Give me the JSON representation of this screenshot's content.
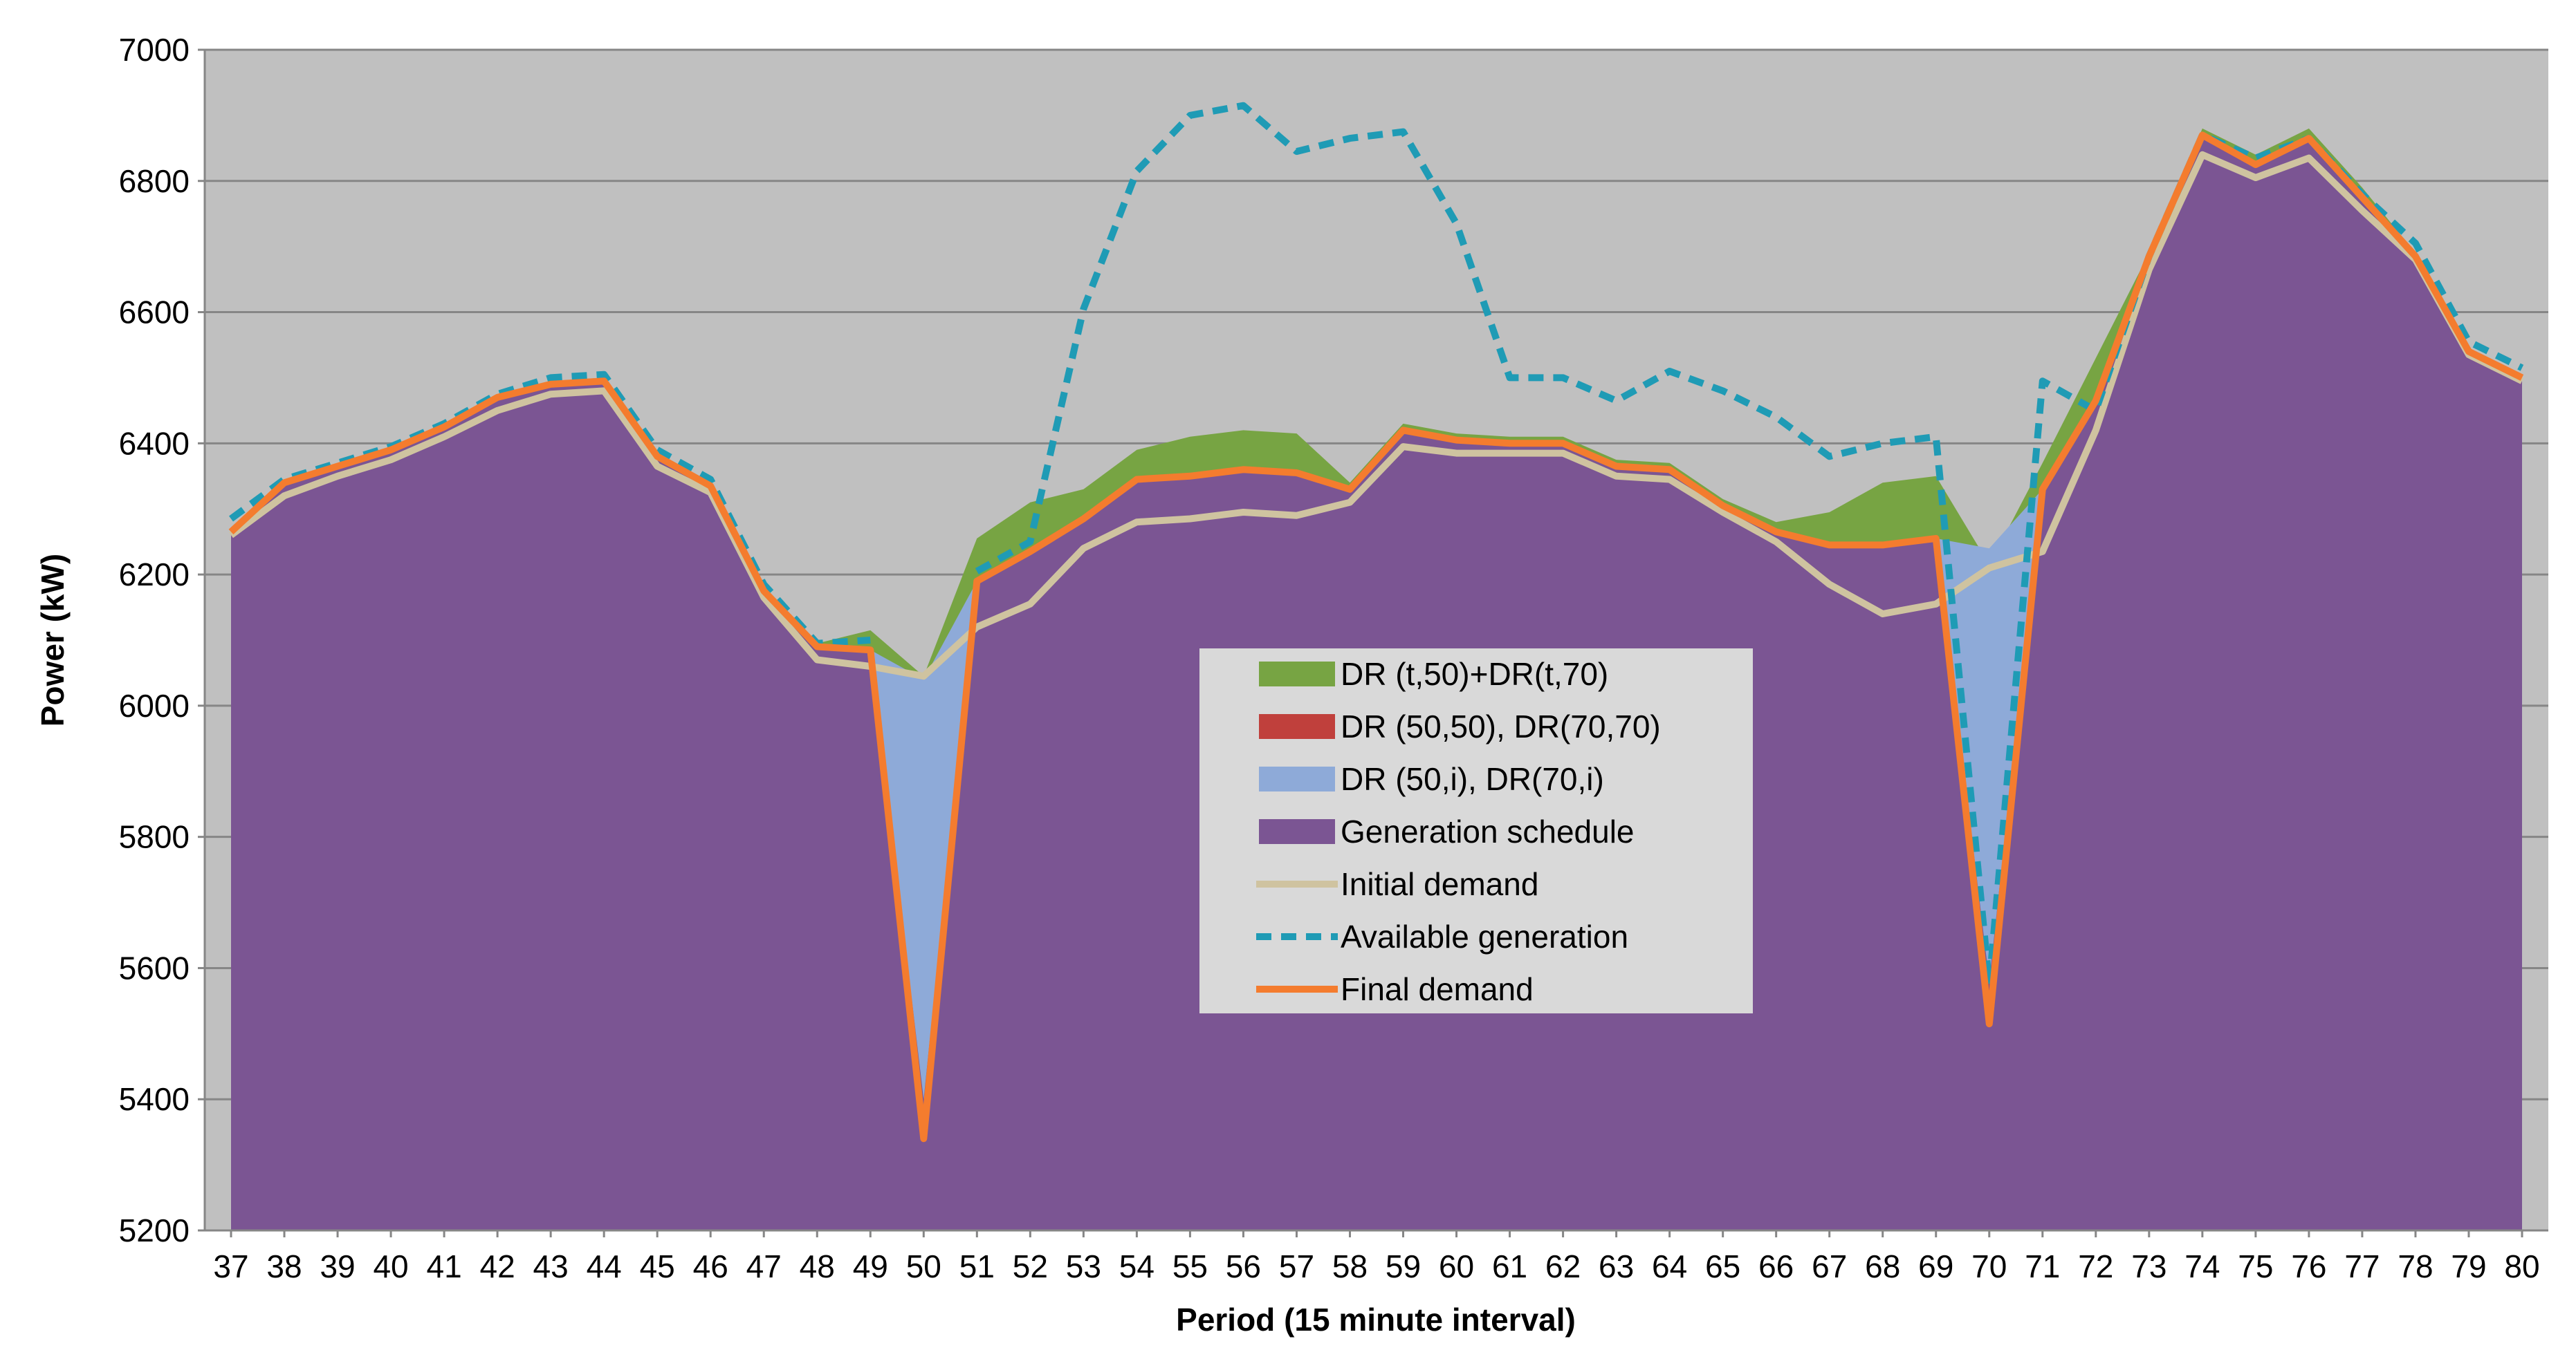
{
  "chart_data": {
    "type": "area",
    "title": "",
    "xlabel": "Period (15 minute interval)",
    "ylabel": "Power (kW)",
    "ylim": [
      5200,
      7000
    ],
    "yticks": [
      5200,
      5400,
      5600,
      5800,
      6000,
      6200,
      6400,
      6600,
      6800,
      7000
    ],
    "grid": true,
    "legend_position": "center",
    "categories": [
      "37",
      "38",
      "39",
      "40",
      "41",
      "42",
      "43",
      "44",
      "45",
      "46",
      "47",
      "48",
      "49",
      "50",
      "51",
      "52",
      "53",
      "54",
      "55",
      "56",
      "57",
      "58",
      "59",
      "60",
      "61",
      "62",
      "63",
      "64",
      "65",
      "66",
      "67",
      "68",
      "69",
      "70",
      "71",
      "72",
      "73",
      "74",
      "75",
      "76",
      "77",
      "78",
      "79",
      "80"
    ],
    "series": [
      {
        "name": "DR (t,50)+DR(t,70)",
        "kind": "area",
        "color": "#77a443",
        "values": [
          6265,
          6340,
          6365,
          6390,
          6425,
          6470,
          6495,
          6500,
          6385,
          6340,
          6175,
          6095,
          6115,
          6045,
          6255,
          6310,
          6330,
          6390,
          6410,
          6420,
          6415,
          6340,
          6430,
          6415,
          6410,
          6410,
          6375,
          6370,
          6315,
          6280,
          6295,
          6340,
          6350,
          6215,
          6370,
          6530,
          6690,
          6880,
          6840,
          6880,
          6790,
          6690,
          6545,
          6505
        ]
      },
      {
        "name": "DR (50,50), DR(70,70)",
        "kind": "area",
        "color": "#c0403c",
        "values": [
          6265,
          6340,
          6365,
          6390,
          6425,
          6470,
          6490,
          6495,
          6380,
          6335,
          6175,
          6090,
          6085,
          5955,
          6190,
          6235,
          6285,
          6345,
          6350,
          6360,
          6355,
          6330,
          6420,
          6405,
          6400,
          6400,
          6365,
          6360,
          6305,
          6265,
          6245,
          6245,
          6255,
          6165,
          6330,
          6465,
          6685,
          6870,
          6825,
          6865,
          6775,
          6685,
          6540,
          6500
        ]
      },
      {
        "name": "DR (50,i), DR(70,i)",
        "kind": "area",
        "color": "#8eaad8",
        "values": [
          6265,
          6340,
          6365,
          6390,
          6425,
          6470,
          6490,
          6495,
          6380,
          6335,
          6175,
          6090,
          6085,
          6040,
          6190,
          6235,
          6285,
          6345,
          6350,
          6360,
          6355,
          6330,
          6420,
          6405,
          6400,
          6400,
          6365,
          6360,
          6305,
          6265,
          6245,
          6245,
          6255,
          6240,
          6330,
          6465,
          6685,
          6870,
          6825,
          6865,
          6775,
          6685,
          6540,
          6500
        ]
      },
      {
        "name": "Generation schedule",
        "kind": "area",
        "color": "#7b5593",
        "values": [
          6265,
          6340,
          6365,
          6390,
          6425,
          6470,
          6490,
          6495,
          6380,
          6335,
          6175,
          6090,
          6085,
          5400,
          6190,
          6235,
          6285,
          6345,
          6350,
          6360,
          6355,
          6330,
          6420,
          6405,
          6400,
          6400,
          6365,
          6360,
          6305,
          6265,
          6245,
          6245,
          6255,
          5580,
          6330,
          6465,
          6685,
          6870,
          6825,
          6865,
          6775,
          6685,
          6540,
          6500
        ]
      },
      {
        "name": "Initial demand",
        "kind": "line",
        "color": "#cfc3a0",
        "dash": "",
        "values": [
          6260,
          6320,
          6350,
          6375,
          6410,
          6450,
          6475,
          6480,
          6365,
          6325,
          6165,
          6070,
          6060,
          6045,
          6120,
          6155,
          6240,
          6280,
          6285,
          6295,
          6290,
          6310,
          6395,
          6385,
          6385,
          6385,
          6350,
          6345,
          6295,
          6250,
          6185,
          6140,
          6155,
          6210,
          6235,
          6420,
          6665,
          6840,
          6805,
          6835,
          6755,
          6680,
          6535,
          6495
        ]
      },
      {
        "name": "Available generation",
        "kind": "line",
        "color": "#1f9bb5",
        "dash": "22,14",
        "values": [
          6285,
          6345,
          6370,
          6395,
          6430,
          6475,
          6500,
          6505,
          6390,
          6345,
          6185,
          6095,
          6100,
          null,
          6205,
          6250,
          6605,
          6815,
          6900,
          6915,
          6845,
          6865,
          6875,
          6735,
          6500,
          6500,
          6465,
          6510,
          6480,
          6440,
          6380,
          6400,
          6410,
          5575,
          6495,
          6450,
          6685,
          6870,
          6835,
          6865,
          6780,
          6705,
          6555,
          6515
        ]
      },
      {
        "name": "Final demand",
        "kind": "line",
        "color": "#f47c2e",
        "dash": "",
        "values": [
          6265,
          6340,
          6365,
          6390,
          6425,
          6470,
          6490,
          6495,
          6380,
          6335,
          6175,
          6090,
          6085,
          5340,
          6190,
          6235,
          6285,
          6345,
          6350,
          6360,
          6355,
          6330,
          6420,
          6405,
          6400,
          6400,
          6365,
          6360,
          6305,
          6265,
          6245,
          6245,
          6255,
          5515,
          6330,
          6465,
          6685,
          6870,
          6825,
          6865,
          6775,
          6685,
          6540,
          6500
        ]
      }
    ]
  }
}
